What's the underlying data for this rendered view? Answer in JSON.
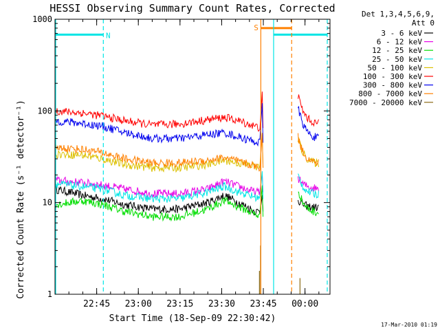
{
  "colors": {
    "background": "#ffffff",
    "axis": "#000000",
    "cyan": "#00e5e5",
    "orange": "#ff8000"
  },
  "chart_data": {
    "type": "line",
    "title": "HESSI Observing Summary Count Rates, Corrected",
    "xlabel": "Start Time (18-Sep-09 22:30:42)",
    "ylabel": "Corrected Count Rate (s⁻¹ detector⁻¹)",
    "yscale": "log",
    "ylim": [
      1,
      1000
    ],
    "xlim_minutes": [
      0,
      99
    ],
    "xticks": [
      {
        "label": "22:45",
        "minute": 15
      },
      {
        "label": "23:00",
        "minute": 30
      },
      {
        "label": "23:15",
        "minute": 45
      },
      {
        "label": "23:30",
        "minute": 60
      },
      {
        "label": "23:45",
        "minute": 75
      },
      {
        "label": "00:00",
        "minute": 90
      }
    ],
    "yticks": [
      {
        "label": "1",
        "value": 1
      },
      {
        "label": "10",
        "value": 10
      },
      {
        "label": "100",
        "value": 100
      },
      {
        "label": "1000",
        "value": 1000
      }
    ],
    "legend_header": [
      "Det 1,3,4,5,6,9,",
      "Att 0"
    ],
    "legend_placement": "right",
    "series": [
      {
        "name": "3 - 6 keV",
        "color": "#000000",
        "x": [
          0,
          10,
          17,
          25,
          35,
          45,
          55,
          61,
          66,
          72,
          74
        ],
        "y": [
          14,
          12,
          11,
          9.5,
          8.5,
          8.5,
          10,
          12,
          10,
          8,
          8
        ]
      },
      {
        "name": "6 - 12 keV",
        "color": "#e600e6",
        "x": [
          0,
          10,
          17,
          25,
          35,
          45,
          55,
          61,
          66,
          72,
          74
        ],
        "y": [
          17.5,
          16.5,
          15.5,
          14,
          12.5,
          12.5,
          14,
          17,
          15,
          13,
          13
        ]
      },
      {
        "name": "12 - 25 keV",
        "color": "#00dd00",
        "x": [
          0,
          10,
          17,
          25,
          35,
          45,
          55,
          61,
          66,
          72,
          74
        ],
        "y": [
          9.5,
          10.5,
          9.5,
          8,
          7,
          7,
          8.5,
          10.5,
          9,
          7.5,
          7
        ]
      },
      {
        "name": "25 - 50 keV",
        "color": "#00e5e5",
        "x": [
          0,
          10,
          17,
          25,
          35,
          45,
          55,
          61,
          66,
          72,
          74
        ],
        "y": [
          16,
          15,
          14,
          12,
          11,
          11,
          13,
          15,
          13,
          11.5,
          11
        ]
      },
      {
        "name": "50 - 100 keV",
        "color": "#dcc000",
        "x": [
          0,
          10,
          17,
          25,
          35,
          45,
          55,
          61,
          66,
          72,
          74
        ],
        "y": [
          34,
          33,
          30,
          26,
          24,
          24,
          26,
          29,
          27,
          25,
          24
        ]
      },
      {
        "name": "100 - 300 keV",
        "color": "#ff0000",
        "x": [
          0,
          10,
          17,
          25,
          35,
          45,
          55,
          61,
          66,
          72,
          74
        ],
        "y": [
          100,
          95,
          88,
          78,
          70,
          72,
          80,
          85,
          78,
          68,
          65
        ]
      },
      {
        "name": "300 - 800 keV",
        "color": "#0000ee",
        "x": [
          0,
          10,
          17,
          25,
          35,
          45,
          55,
          61,
          66,
          72,
          74
        ],
        "y": [
          78,
          73,
          68,
          58,
          50,
          50,
          55,
          58,
          52,
          46,
          45
        ]
      },
      {
        "name": "800 - 7000 keV",
        "color": "#ff8000",
        "x": [
          0,
          10,
          17,
          25,
          35,
          45,
          55,
          61,
          66,
          72,
          74
        ],
        "y": [
          40,
          38,
          35,
          30,
          27,
          27,
          29,
          31,
          28,
          25,
          24
        ]
      },
      {
        "name": "7000 - 20000 keV",
        "color": "#8b6914",
        "x": [],
        "y": []
      }
    ],
    "annotations": [
      {
        "text": "N",
        "color": "#00e5e5"
      },
      {
        "text": "S",
        "color": "#ff8000"
      }
    ]
  },
  "footer": {
    "timestamp": "17-Mar-2010 01:19"
  }
}
